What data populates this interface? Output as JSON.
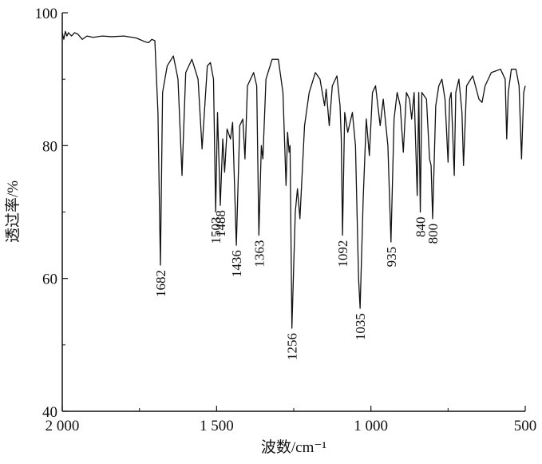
{
  "chart_data": {
    "type": "line",
    "xlabel": "波数/cm⁻¹",
    "ylabel": "透过率/%",
    "xlim": [
      2000,
      500
    ],
    "ylim": [
      40,
      100
    ],
    "xticks": [
      {
        "value": 2000,
        "label": "2 000"
      },
      {
        "value": 1500,
        "label": "1 500"
      },
      {
        "value": 1000,
        "label": "1 000"
      },
      500
    ],
    "x_minor_ticks": [
      1750,
      1250,
      750
    ],
    "yticks": [
      40,
      60,
      80,
      100
    ],
    "y_minor_ticks": [
      50,
      70,
      90
    ],
    "series": [
      {
        "color": "#111111",
        "x": [
          2000,
          1995,
          1990,
          1985,
          1980,
          1970,
          1960,
          1950,
          1935,
          1920,
          1900,
          1870,
          1840,
          1800,
          1760,
          1730,
          1720,
          1710,
          1700,
          1690,
          1682,
          1675,
          1660,
          1640,
          1625,
          1612,
          1600,
          1580,
          1560,
          1547,
          1530,
          1520,
          1510,
          1503,
          1497,
          1488,
          1480,
          1474,
          1466,
          1455,
          1448,
          1436,
          1425,
          1415,
          1408,
          1400,
          1390,
          1380,
          1370,
          1363,
          1355,
          1350,
          1340,
          1320,
          1300,
          1285,
          1275,
          1270,
          1265,
          1262,
          1256,
          1245,
          1238,
          1230,
          1215,
          1200,
          1180,
          1165,
          1150,
          1145,
          1135,
          1125,
          1110,
          1100,
          1096,
          1092,
          1085,
          1075,
          1060,
          1050,
          1040,
          1035,
          1025,
          1015,
          1005,
          995,
          985,
          970,
          960,
          945,
          935,
          925,
          915,
          905,
          895,
          885,
          875,
          868,
          860,
          850,
          845,
          840,
          835,
          820,
          810,
          805,
          800,
          790,
          780,
          770,
          760,
          750,
          745,
          740,
          730,
          725,
          715,
          705,
          700,
          690,
          670,
          650,
          640,
          630,
          610,
          580,
          565,
          560,
          555,
          545,
          530,
          520,
          512,
          505,
          500
        ],
        "values": [
          97,
          96,
          97.2,
          96.5,
          97,
          96.5,
          97,
          96.8,
          96,
          96.5,
          96.3,
          96.5,
          96.4,
          96.5,
          96.2,
          95.6,
          95.5,
          96,
          95.8,
          85,
          62,
          88,
          92,
          93.5,
          90,
          75.5,
          91,
          93,
          90,
          79.5,
          92,
          92.5,
          90,
          70,
          85,
          71,
          81,
          76,
          82.5,
          81,
          83.5,
          65,
          83,
          84,
          78,
          89,
          90,
          91,
          89,
          66.5,
          80,
          78,
          90,
          93,
          93,
          88,
          74,
          82,
          79,
          80,
          52.5,
          70,
          73.5,
          69,
          83,
          88,
          91,
          90,
          86,
          88.5,
          83,
          89,
          90.5,
          86,
          81,
          66.5,
          85,
          82,
          85,
          80,
          60,
          55.5,
          72,
          84,
          78.5,
          88,
          89,
          83,
          87,
          80,
          65.5,
          84,
          88,
          86,
          79,
          88,
          87,
          84,
          88,
          72.5,
          88,
          70,
          88,
          87,
          78,
          77,
          69,
          86,
          89,
          90,
          87,
          77.5,
          87,
          88,
          75.5,
          88,
          90,
          85,
          77,
          89,
          90.5,
          87,
          86.5,
          89,
          91,
          91.5,
          90,
          81,
          88,
          91.5,
          91.5,
          89,
          78,
          88,
          89
        ]
      }
    ],
    "annotations": [
      {
        "text": "1682",
        "x": 1682,
        "y": 62
      },
      {
        "text": "1503",
        "x": 1503,
        "y": 70
      },
      {
        "text": "1488",
        "x": 1488,
        "y": 71
      },
      {
        "text": "1436",
        "x": 1436,
        "y": 65
      },
      {
        "text": "1363",
        "x": 1363,
        "y": 66.5
      },
      {
        "text": "1256",
        "x": 1256,
        "y": 52.5
      },
      {
        "text": "1092",
        "x": 1092,
        "y": 66.5
      },
      {
        "text": "1035",
        "x": 1035,
        "y": 55.5
      },
      {
        "text": "935",
        "x": 935,
        "y": 65.5
      },
      {
        "text": "840",
        "x": 840,
        "y": 70
      },
      {
        "text": "800",
        "x": 800,
        "y": 69
      }
    ]
  }
}
